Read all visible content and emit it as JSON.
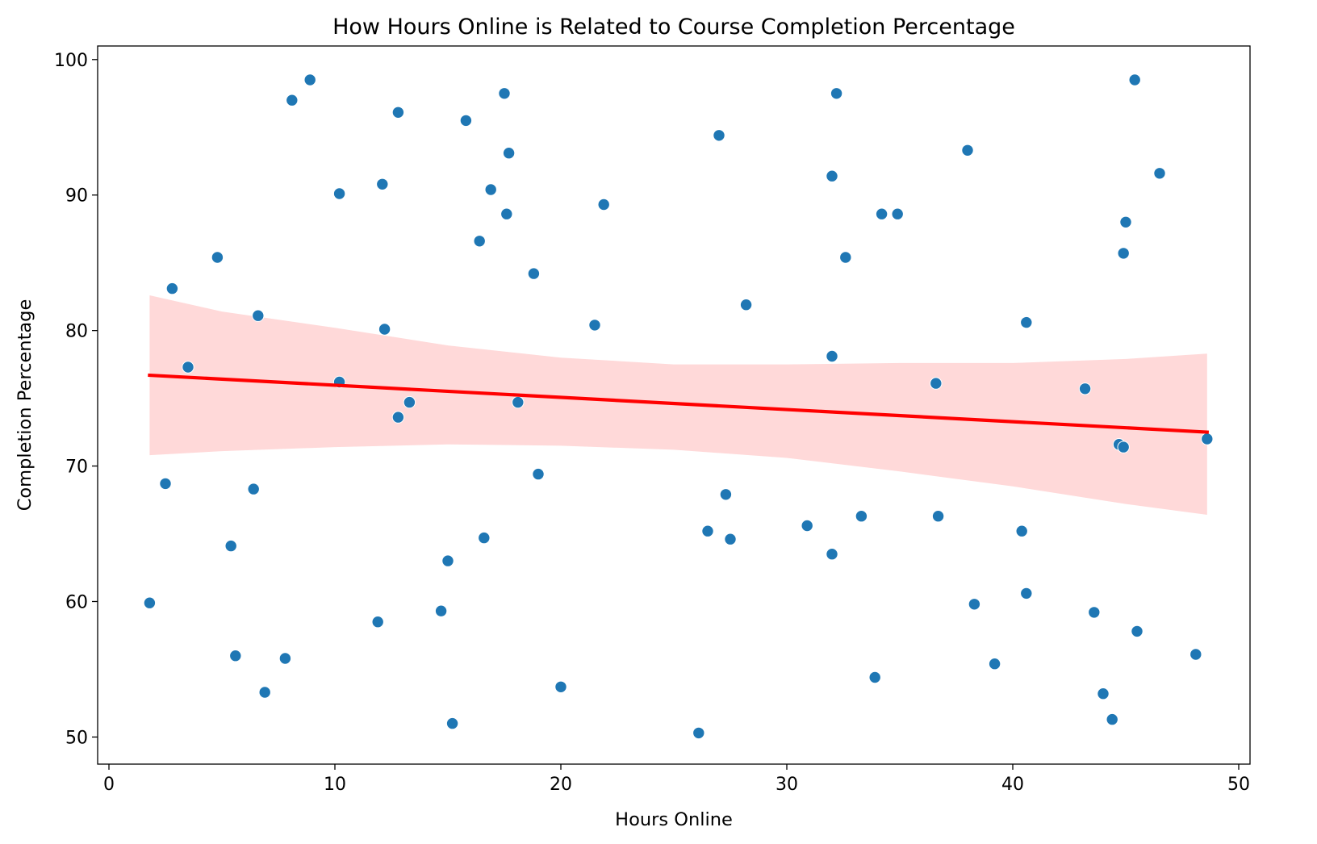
{
  "chart_data": {
    "type": "scatter",
    "title": "How Hours Online is Related to Course Completion Percentage",
    "xlabel": "Hours Online",
    "ylabel": "Completion Percentage",
    "xlim": [
      -0.5,
      50.5
    ],
    "ylim": [
      48,
      101
    ],
    "xticks": [
      0,
      10,
      20,
      30,
      40,
      50
    ],
    "yticks": [
      50,
      60,
      70,
      80,
      90,
      100
    ],
    "grid": false,
    "colors": {
      "points": "#1f77b4",
      "regression_line": "#ff0000",
      "confidence_band": "#ffd9d9"
    },
    "points": [
      {
        "x": 1.8,
        "y": 59.9
      },
      {
        "x": 2.5,
        "y": 68.7
      },
      {
        "x": 2.8,
        "y": 83.1
      },
      {
        "x": 3.5,
        "y": 77.3
      },
      {
        "x": 4.8,
        "y": 85.4
      },
      {
        "x": 5.4,
        "y": 64.1
      },
      {
        "x": 5.6,
        "y": 56.0
      },
      {
        "x": 6.4,
        "y": 68.3
      },
      {
        "x": 6.6,
        "y": 81.1
      },
      {
        "x": 6.9,
        "y": 53.3
      },
      {
        "x": 7.8,
        "y": 55.8
      },
      {
        "x": 8.1,
        "y": 97.0
      },
      {
        "x": 8.9,
        "y": 98.5
      },
      {
        "x": 10.2,
        "y": 90.1
      },
      {
        "x": 10.2,
        "y": 76.2
      },
      {
        "x": 11.9,
        "y": 58.5
      },
      {
        "x": 12.1,
        "y": 90.8
      },
      {
        "x": 12.2,
        "y": 80.1
      },
      {
        "x": 12.8,
        "y": 96.1
      },
      {
        "x": 12.8,
        "y": 73.6
      },
      {
        "x": 13.3,
        "y": 74.7
      },
      {
        "x": 14.7,
        "y": 59.3
      },
      {
        "x": 15.0,
        "y": 63.0
      },
      {
        "x": 15.2,
        "y": 51.0
      },
      {
        "x": 15.8,
        "y": 95.5
      },
      {
        "x": 16.4,
        "y": 86.6
      },
      {
        "x": 16.6,
        "y": 64.7
      },
      {
        "x": 16.9,
        "y": 90.4
      },
      {
        "x": 17.5,
        "y": 97.5
      },
      {
        "x": 17.6,
        "y": 88.6
      },
      {
        "x": 17.7,
        "y": 93.1
      },
      {
        "x": 18.1,
        "y": 74.7
      },
      {
        "x": 18.8,
        "y": 84.2
      },
      {
        "x": 19.0,
        "y": 69.4
      },
      {
        "x": 20.0,
        "y": 53.7
      },
      {
        "x": 21.5,
        "y": 80.4
      },
      {
        "x": 21.9,
        "y": 89.3
      },
      {
        "x": 26.1,
        "y": 50.3
      },
      {
        "x": 26.5,
        "y": 65.2
      },
      {
        "x": 27.0,
        "y": 94.4
      },
      {
        "x": 27.3,
        "y": 67.9
      },
      {
        "x": 27.5,
        "y": 64.6
      },
      {
        "x": 28.2,
        "y": 81.9
      },
      {
        "x": 30.9,
        "y": 65.6
      },
      {
        "x": 32.0,
        "y": 91.4
      },
      {
        "x": 32.0,
        "y": 78.1
      },
      {
        "x": 32.0,
        "y": 63.5
      },
      {
        "x": 32.2,
        "y": 97.5
      },
      {
        "x": 32.6,
        "y": 85.4
      },
      {
        "x": 33.3,
        "y": 66.3
      },
      {
        "x": 33.9,
        "y": 54.4
      },
      {
        "x": 34.2,
        "y": 88.6
      },
      {
        "x": 34.9,
        "y": 88.6
      },
      {
        "x": 36.6,
        "y": 76.1
      },
      {
        "x": 36.7,
        "y": 66.3
      },
      {
        "x": 38.0,
        "y": 93.3
      },
      {
        "x": 38.3,
        "y": 59.8
      },
      {
        "x": 39.2,
        "y": 55.4
      },
      {
        "x": 40.4,
        "y": 65.2
      },
      {
        "x": 40.6,
        "y": 80.6
      },
      {
        "x": 40.6,
        "y": 60.6
      },
      {
        "x": 43.2,
        "y": 75.7
      },
      {
        "x": 43.6,
        "y": 59.2
      },
      {
        "x": 44.0,
        "y": 53.2
      },
      {
        "x": 44.4,
        "y": 51.3
      },
      {
        "x": 44.7,
        "y": 71.6
      },
      {
        "x": 44.9,
        "y": 85.7
      },
      {
        "x": 44.9,
        "y": 71.4
      },
      {
        "x": 45.0,
        "y": 88.0
      },
      {
        "x": 45.4,
        "y": 98.5
      },
      {
        "x": 45.5,
        "y": 57.8
      },
      {
        "x": 46.5,
        "y": 91.6
      },
      {
        "x": 48.1,
        "y": 56.1
      },
      {
        "x": 48.6,
        "y": 72.0
      }
    ],
    "regression_line": {
      "x": [
        1.8,
        48.6
      ],
      "y": [
        76.7,
        72.5
      ]
    },
    "confidence_band": {
      "x": [
        1.8,
        5,
        10,
        15,
        20,
        25,
        30,
        35,
        40,
        45,
        48.6
      ],
      "upper": [
        82.6,
        81.4,
        80.2,
        78.9,
        78.0,
        77.5,
        77.5,
        77.6,
        77.6,
        77.9,
        78.3
      ],
      "lower": [
        70.8,
        71.1,
        71.4,
        71.6,
        71.5,
        71.2,
        70.6,
        69.6,
        68.5,
        67.2,
        66.4
      ]
    }
  }
}
